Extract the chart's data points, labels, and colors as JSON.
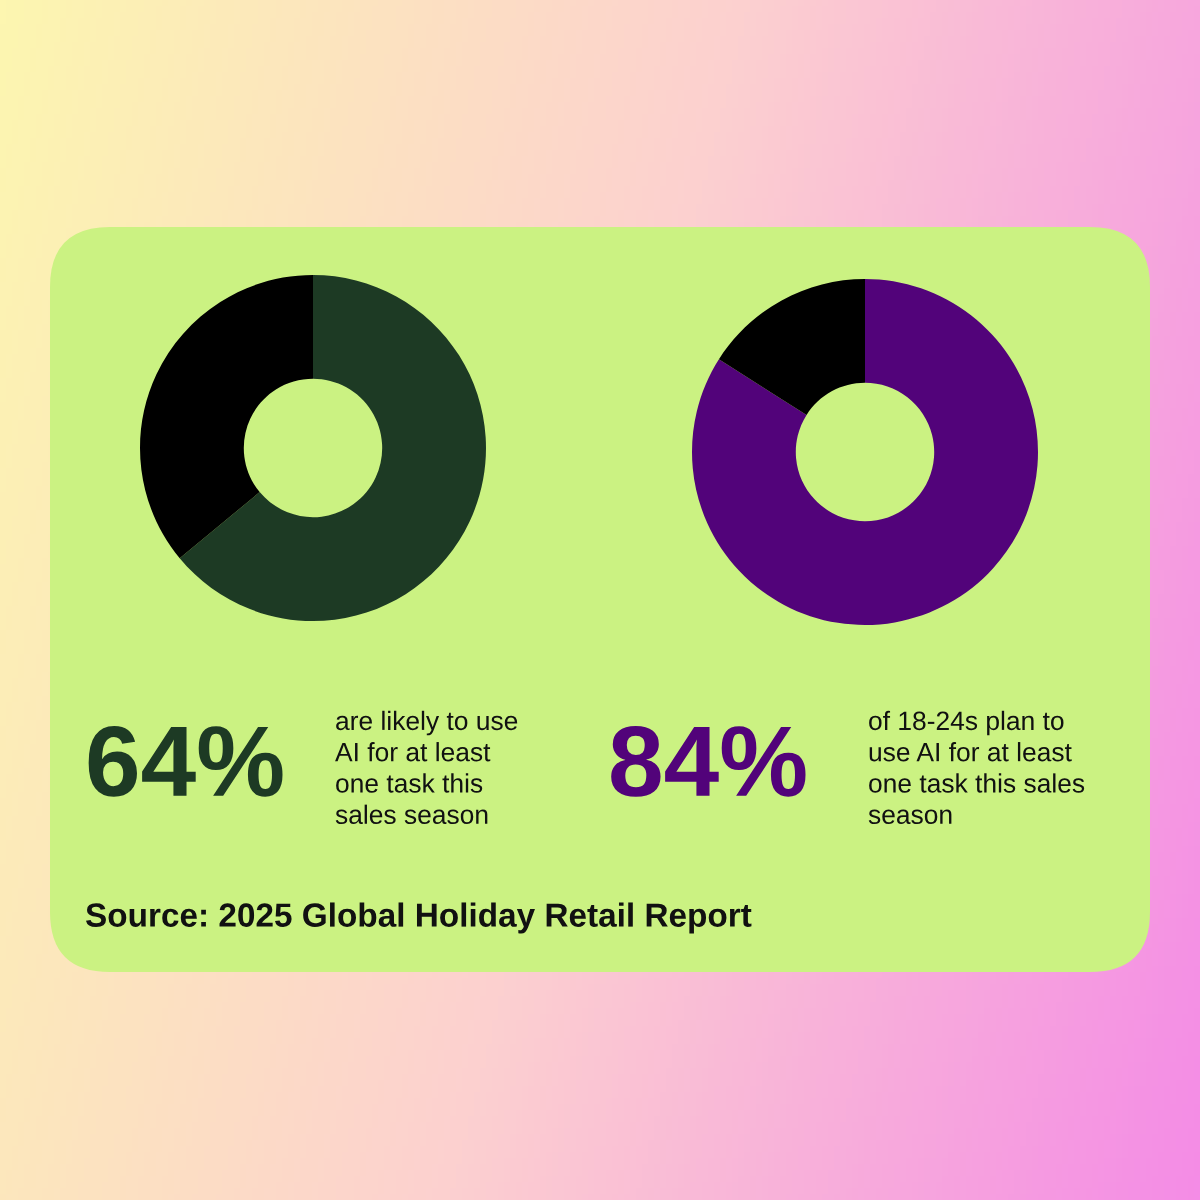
{
  "chart_data": [
    {
      "type": "donut",
      "categories": [
        null,
        null
      ],
      "values": [
        64,
        36
      ],
      "colors": [
        "#1d3a24",
        "#000000"
      ],
      "annotations": [
        "64%",
        "are likely to use\nAI for at least\none task this\nsales season",
        "Source: 2025 Global Holiday Retail Report"
      ]
    },
    {
      "type": "donut",
      "categories": [
        null,
        null
      ],
      "values": [
        84,
        16
      ],
      "colors": [
        "#52037a",
        "#000000"
      ],
      "annotations": [
        "84%",
        "of 18-24s plan to\nuse AI for at least\none task this sales\nseason"
      ]
    }
  ]
}
